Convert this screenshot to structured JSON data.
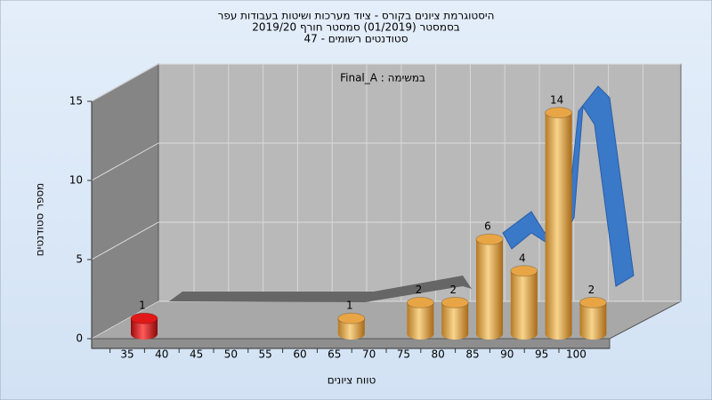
{
  "chart_data": {
    "type": "bar3d",
    "title": [
      "היסטוגרמת ציונים בקורס - ציוד מערכות ושיטות בעבודות עפר",
      "בסמסטר  (01/2019)  סמסטר חורף 2019/20",
      "סטודנטים רשומים - 47"
    ],
    "annotation": "במשימה : Final_A",
    "ylabel": "מספר סטודנטים",
    "xlabel": "טווח ציונים",
    "categories": [
      "35",
      "40",
      "45",
      "50",
      "55",
      "60",
      "65",
      "70",
      "75",
      "80",
      "85",
      "90",
      "95",
      "100"
    ],
    "values": [
      1,
      0,
      0,
      0,
      0,
      0,
      1,
      0,
      2,
      2,
      6,
      4,
      14,
      2
    ],
    "colors": [
      "#e01818",
      "#e8a545",
      "#e8a545",
      "#e8a545",
      "#e8a545",
      "#e8a545",
      "#e8a545",
      "#e8a545",
      "#e8a545",
      "#e8a545",
      "#e8a545",
      "#e8a545",
      "#e8a545",
      "#e8a545"
    ],
    "ylim": [
      0,
      15
    ],
    "yticks": [
      0,
      5,
      10,
      15
    ],
    "grid": true
  }
}
